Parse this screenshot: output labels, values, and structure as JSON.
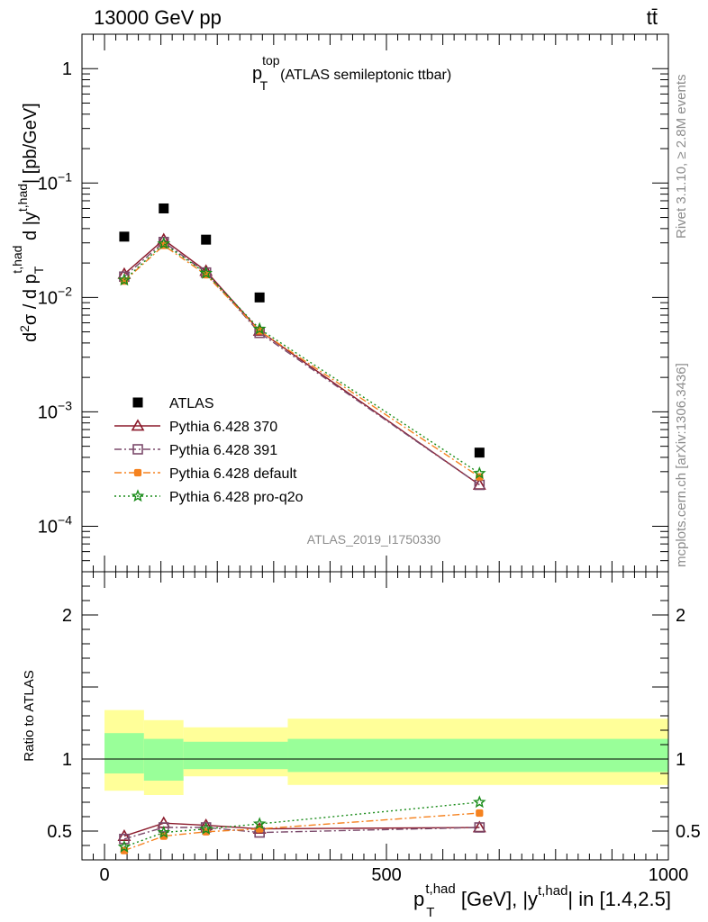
{
  "header": {
    "energy": "13000 GeV pp",
    "process": "tt̄"
  },
  "side_labels": {
    "rivet": "Rivet 3.1.10, ≥ 2.8M events",
    "mcplots": "mcplots.cern.ch [arXiv:1306.3436]"
  },
  "chart_data": [
    {
      "type": "scatter",
      "title_main": "p",
      "title_sup": "top",
      "title_sub": "T",
      "title_rest": "(ATLAS semileptonic ttbar)",
      "ylabel": "d²σ / d p_T^{t,had} d |y^{t,had}| [pb/GeV]",
      "ylabel_parts": {
        "a": "d",
        "a_sup": "2",
        "b": "σ  /  d p",
        "b_sub": "T",
        "b_sup": "t,had",
        "c": " d |y",
        "c_sup": "t,had",
        "d": "| [pb/GeV]"
      },
      "yscale": "log",
      "ylim": [
        4e-05,
        2
      ],
      "xlim": [
        -40,
        1000
      ],
      "ytick_labels": [
        {
          "base": "1",
          "exp": ""
        },
        {
          "base": "10",
          "exp": "−1"
        },
        {
          "base": "10",
          "exp": "−2"
        },
        {
          "base": "10",
          "exp": "−3"
        },
        {
          "base": "10",
          "exp": "−4"
        }
      ],
      "ytick_values": [
        1,
        0.1,
        0.01,
        0.001,
        0.0001
      ],
      "watermark": "ATLAS_2019_I1750330",
      "legend_position": "lower-left",
      "x": [
        35,
        105,
        180,
        275,
        665
      ],
      "series": [
        {
          "name": "ATLAS",
          "color": "#000000",
          "marker": "filled-square",
          "line": "none",
          "values": [
            0.034,
            0.06,
            0.032,
            0.01,
            0.00044
          ]
        },
        {
          "name": "Pythia 6.428 370",
          "color": "#8b1a2b",
          "marker": "open-triangle",
          "line": "solid",
          "values": [
            0.016,
            0.032,
            0.017,
            0.0051,
            0.00023
          ]
        },
        {
          "name": "Pythia 6.428 391",
          "color": "#7b4a6b",
          "marker": "open-square",
          "line": "dashdot",
          "values": [
            0.0152,
            0.0305,
            0.0165,
            0.0049,
            0.00023
          ]
        },
        {
          "name": "Pythia 6.428 default",
          "color": "#f5821f",
          "marker": "filled-circle",
          "line": "dashdot",
          "values": [
            0.0139,
            0.0285,
            0.0158,
            0.0051,
            0.00027
          ]
        },
        {
          "name": "Pythia 6.428 pro-q2o",
          "color": "#1a8c1a",
          "marker": "star",
          "line": "dotted",
          "values": [
            0.0142,
            0.0295,
            0.0163,
            0.0053,
            0.00029
          ]
        }
      ]
    },
    {
      "type": "line",
      "ylabel": "Ratio to ATLAS",
      "ylim": [
        0.3,
        2.3
      ],
      "xlim": [
        -40,
        1000
      ],
      "yticks": [
        0.5,
        1,
        2
      ],
      "ytick_labels": [
        "0.5",
        "1",
        "2"
      ],
      "xticks": [
        0,
        500,
        1000
      ],
      "xtick_labels": [
        "0",
        "500",
        "1000"
      ],
      "xlabel_parts": {
        "a": "p",
        "a_sub": "T",
        "a_sup": "t,had",
        "b": " [GeV], |y",
        "b_sup": "t,had",
        "c": "| in [1.4,2.5]"
      },
      "xlabel": "p_T^{t,had} [GeV], |y^{t,had}| in [1.4,2.5]",
      "bins": [
        {
          "lo": 0,
          "hi": 70,
          "inner": [
            0.9,
            1.18
          ],
          "outer": [
            0.78,
            1.34
          ]
        },
        {
          "lo": 70,
          "hi": 140,
          "inner": [
            0.85,
            1.14
          ],
          "outer": [
            0.75,
            1.27
          ]
        },
        {
          "lo": 140,
          "hi": 325,
          "inner": [
            0.93,
            1.12
          ],
          "outer": [
            0.88,
            1.22
          ]
        },
        {
          "lo": 325,
          "hi": 1000,
          "inner": [
            0.91,
            1.14
          ],
          "outer": [
            0.82,
            1.28
          ]
        }
      ],
      "band_colors": {
        "inner": "#99ff99",
        "outer": "#ffff99"
      },
      "x": [
        35,
        105,
        180,
        275,
        665
      ],
      "series": [
        {
          "name": "Pythia 6.428 370",
          "color": "#8b1a2b",
          "marker": "open-triangle",
          "line": "solid",
          "values": [
            0.465,
            0.555,
            0.54,
            0.515,
            0.525
          ]
        },
        {
          "name": "Pythia 6.428 391",
          "color": "#7b4a6b",
          "marker": "open-square",
          "line": "dashdot",
          "values": [
            0.445,
            0.525,
            0.525,
            0.49,
            0.525
          ]
        },
        {
          "name": "Pythia 6.428 default",
          "color": "#f5821f",
          "marker": "filled-circle",
          "line": "dashdot",
          "values": [
            0.365,
            0.465,
            0.495,
            0.515,
            0.625
          ]
        },
        {
          "name": "Pythia 6.428 pro-q2o",
          "color": "#1a8c1a",
          "marker": "star",
          "line": "dotted",
          "values": [
            0.39,
            0.49,
            0.515,
            0.55,
            0.7
          ]
        }
      ]
    }
  ]
}
